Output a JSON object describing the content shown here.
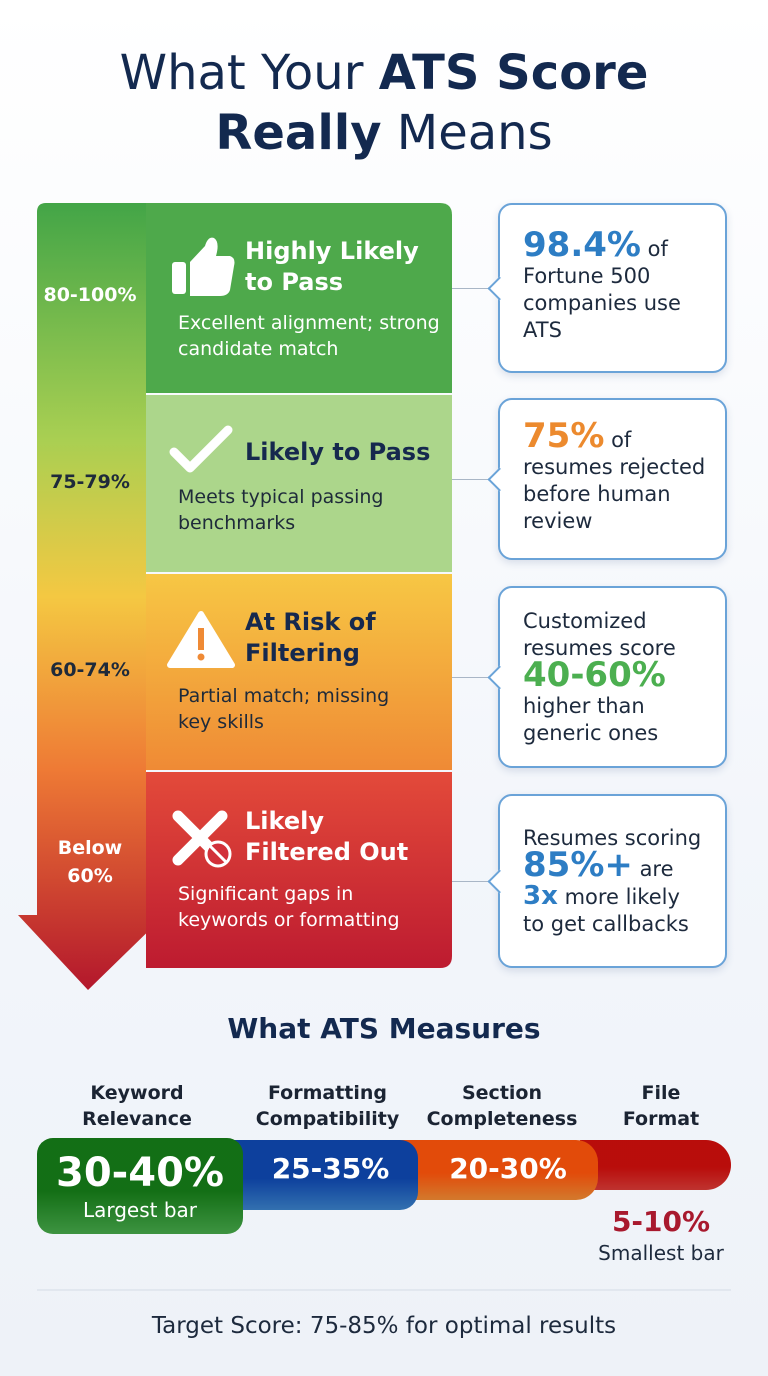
{
  "title": {
    "parts": [
      "What Your",
      "ATS Score",
      "Really",
      "Means"
    ]
  },
  "tiers": [
    {
      "range": "80-100%",
      "heading": "Highly Likely to Pass",
      "description": "Excellent alignment; strong candidate match",
      "stat": [
        {
          "text": "98.4%",
          "color": "#2d7dc4"
        },
        {
          "text": "of"
        },
        {
          "text": "Fortune 500 companies use ATS"
        }
      ]
    },
    {
      "range": "75-79%",
      "heading": "Likely to Pass",
      "description": "Meets typical passing benchmarks",
      "stat": [
        {
          "text": "75%",
          "color": "#ec8a2e"
        },
        {
          "text": "of"
        },
        {
          "text": "resumes rejected before human review"
        }
      ]
    },
    {
      "range": "60-74%",
      "heading": "At Risk of Filtering",
      "description": "Partial match; missing key skills",
      "stat": [
        {
          "text": "Customized resumes score"
        },
        {
          "text": "40-60%",
          "color": "#4caf50"
        },
        {
          "text": "higher than generic ones"
        }
      ]
    },
    {
      "range": "Below 60%",
      "heading": "Likely Filtered Out",
      "description": "Significant gaps in keywords or formatting",
      "stat": [
        {
          "text": "Resumes scoring"
        },
        {
          "text": "85%+",
          "color": "#2d7dc4"
        },
        {
          "text": "are"
        },
        {
          "text": "3x",
          "color": "#2d7dc4"
        },
        {
          "text": "more likely to get callbacks"
        }
      ]
    }
  ],
  "measures": {
    "title": "What ATS Measures",
    "items": [
      {
        "label": "Keyword Relevance",
        "range": "30-40%",
        "note": "Largest bar",
        "color": "#46a84a"
      },
      {
        "label": "Formatting Compatibility",
        "range": "25-35%",
        "color": "#3a80c8"
      },
      {
        "label": "Section Completeness",
        "range": "20-30%",
        "color": "#f08a33"
      },
      {
        "label": "File Format",
        "range": "5-10%",
        "note": "Smallest bar",
        "color": "#d93a36"
      }
    ]
  },
  "footer": "Target Score: 75-85% for optimal results"
}
